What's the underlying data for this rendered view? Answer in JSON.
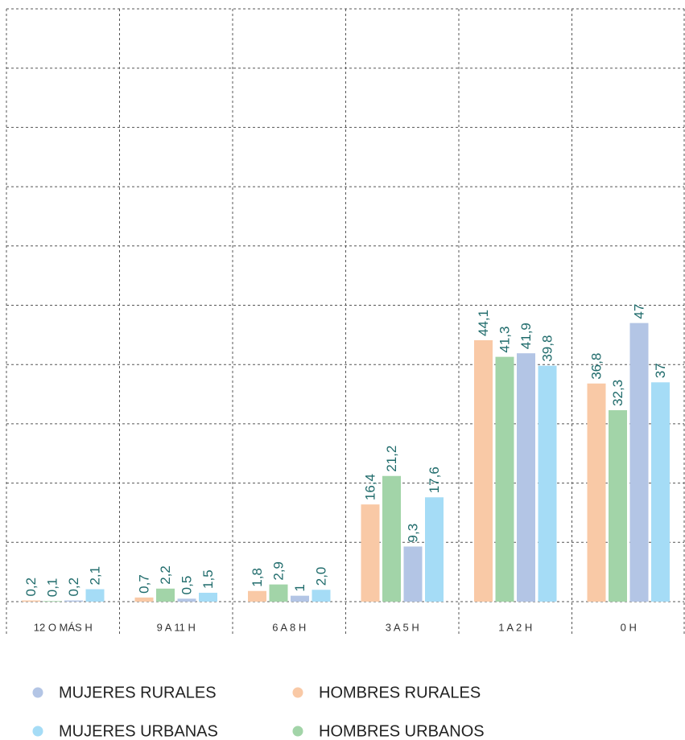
{
  "chart_data": {
    "type": "bar",
    "categories": [
      "12 O MÁS H",
      "9 A 11 H",
      "6 A 8 H",
      "3 A 5 H",
      "1 A 2 H",
      "0 H"
    ],
    "series": [
      {
        "name": "HOMBRES RURALES",
        "color": "#f9c9a6",
        "values": [
          0.2,
          0.7,
          1.8,
          16.4,
          44.1,
          36.8
        ],
        "value_labels": [
          "0,2",
          "0,7",
          "1,8",
          "16,4",
          "44,1",
          "36,8"
        ]
      },
      {
        "name": "HOMBRES URBANOS",
        "color": "#a2d4a8",
        "values": [
          0.1,
          2.2,
          2.9,
          21.2,
          41.3,
          32.3
        ],
        "value_labels": [
          "0,1",
          "2,2",
          "2,9",
          "21,2",
          "41,3",
          "32,3"
        ]
      },
      {
        "name": "MUJERES RURALES",
        "color": "#b3c5e5",
        "values": [
          0.2,
          0.5,
          1,
          9.3,
          41.9,
          47
        ],
        "value_labels": [
          "0,2",
          "0,5",
          "1",
          "9,3",
          "41,9",
          "47"
        ]
      },
      {
        "name": "MUJERES URBANAS",
        "color": "#a5dcf6",
        "values": [
          2.1,
          1.5,
          2.0,
          17.6,
          39.8,
          37
        ],
        "value_labels": [
          "2,1",
          "1,5",
          "2,0",
          "17,6",
          "39,8",
          "37"
        ]
      }
    ],
    "ylim": [
      0,
      100
    ],
    "yticks": [
      0,
      10,
      20,
      30,
      40,
      50,
      60,
      70,
      80,
      90,
      100
    ],
    "grid": true
  }
}
